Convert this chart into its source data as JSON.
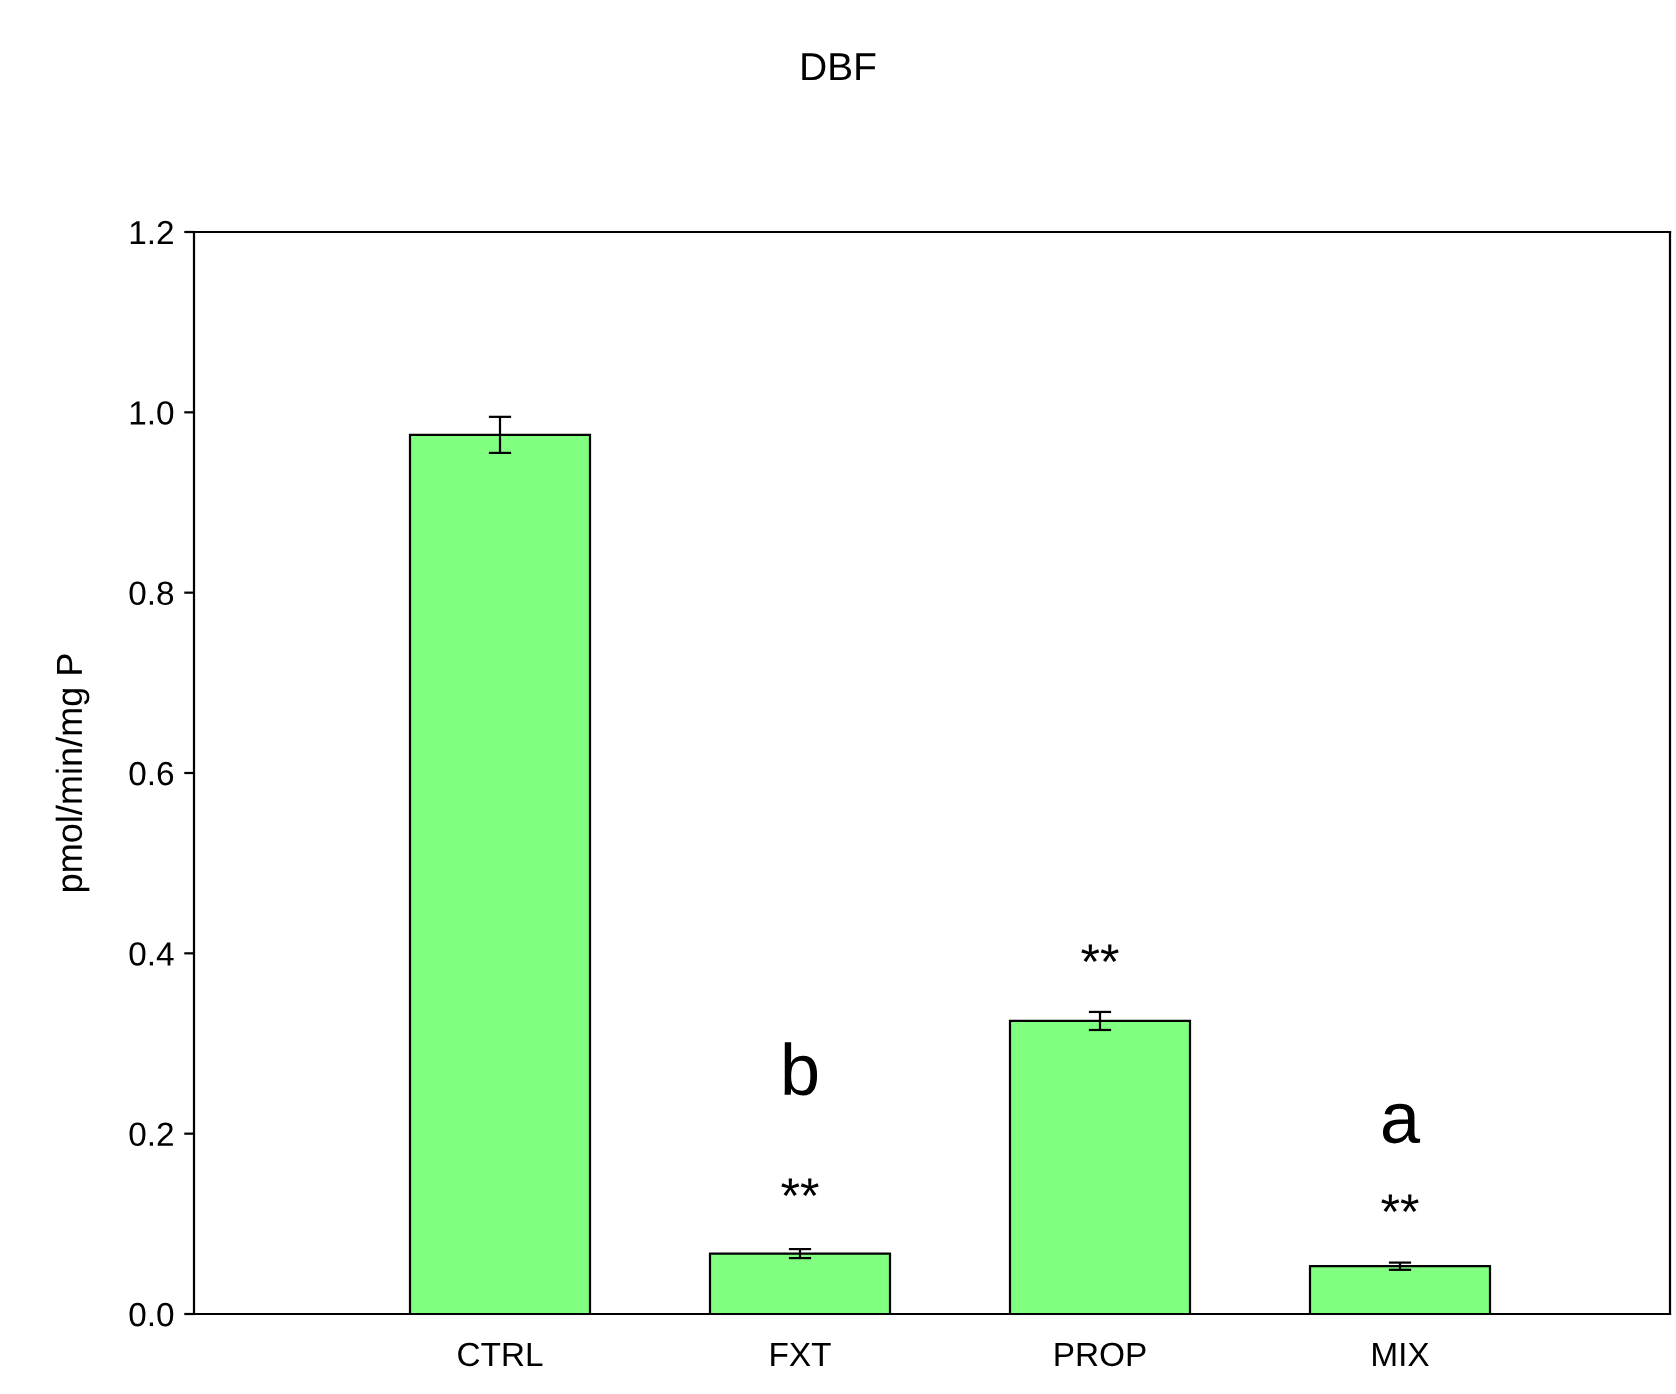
{
  "chart_data": {
    "type": "bar",
    "title": "DBF",
    "ylabel": "pmol/min/mg P",
    "categories": [
      "CTRL",
      "FXT",
      "PROP",
      "MIX"
    ],
    "values": [
      0.975,
      0.067,
      0.325,
      0.053
    ],
    "errors": [
      0.02,
      0.005,
      0.01,
      0.004
    ],
    "color": "#80ff80",
    "ylim": [
      0,
      1.2
    ],
    "yticks": [
      {
        "value": 0,
        "label": "0.0"
      },
      0.2,
      0.4,
      0.6,
      0.8,
      {
        "value": 1,
        "label": "1.0"
      },
      1.2
    ],
    "grid": false,
    "annotations": [
      "**",
      "b",
      "**",
      "**",
      "a"
    ]
  }
}
